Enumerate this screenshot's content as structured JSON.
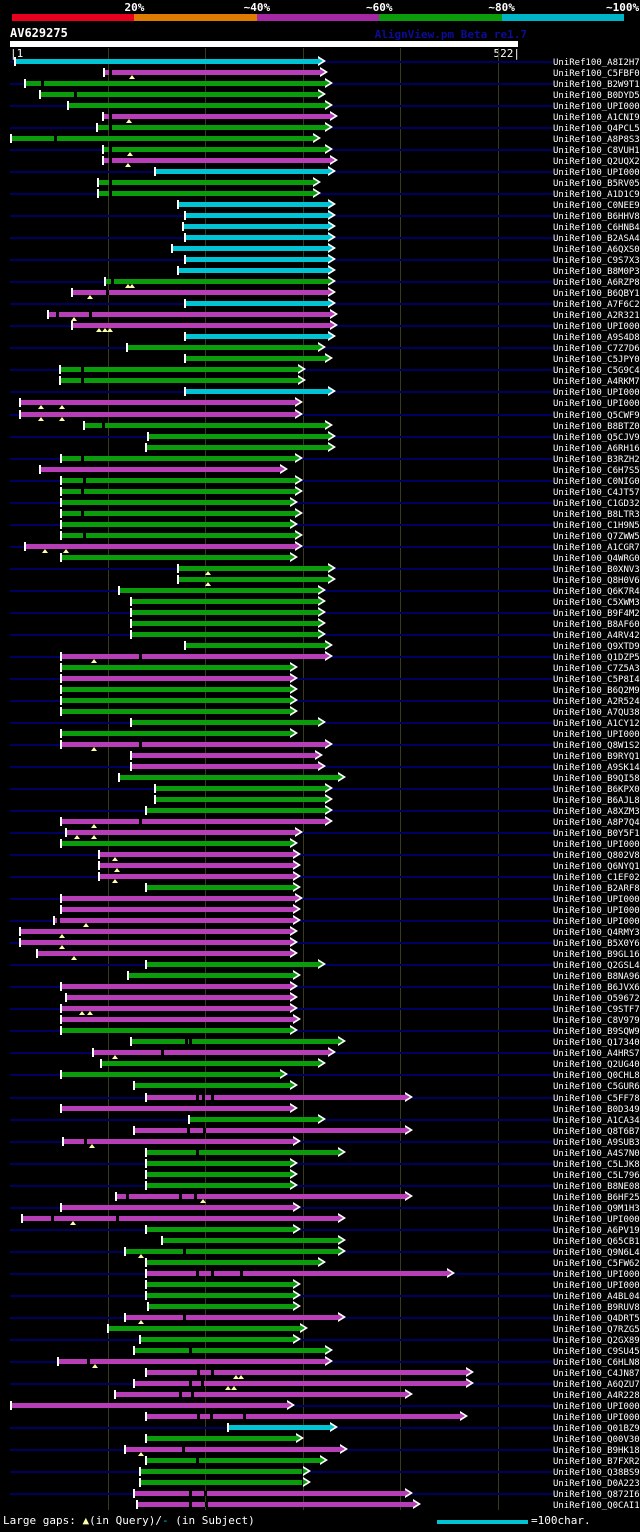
{
  "header": {
    "query_title": "AV629275",
    "watermark": "AlignView.pm Beta re1.7",
    "coord_start_label": "|1",
    "coord_end_label": "522|"
  },
  "legend": {
    "prefix": "Large gaps: ",
    "query_gap_symbol": "▲",
    "query_gap_text": "(in Query)/",
    "subject_gap_symbol": "-",
    "subject_gap_text": " (in Subject)",
    "ruler_label": "=100char."
  },
  "colors": {
    "green_hit": "#0b9c0b",
    "magenta_hit": "#b83eb8",
    "cyan_hit": "#00c4d4",
    "row_baseline": "#000060",
    "gridline": "#3a3a1c",
    "query_gap_marker": "#ffffaa",
    "scale_blocks": [
      "#e8001f",
      "#de7b00",
      "#a428a4",
      "#0b9c0b",
      "#00b4c8"
    ]
  },
  "chart_data": {
    "type": "bar",
    "orientation": "horizontal",
    "title": "AV629275",
    "xlabel": "query position",
    "axis": {
      "min": 1,
      "max": 522,
      "gridlines_at": [
        100,
        200,
        300,
        400,
        500
      ]
    },
    "identity_scale_labels": [
      "20%",
      "~40%",
      "~60%",
      "~80%",
      "~100%"
    ],
    "color_keys": {
      "g": "green_hit",
      "m": "magenta_hit",
      "c": "cyan_hit"
    },
    "row_format": [
      "subject_id",
      "color",
      "query_start",
      "query_end",
      "query_gap_positions",
      "subject_gap_positions"
    ],
    "rows": [
      [
        "UniRef100_A8I2H7",
        "c",
        5,
        316,
        [],
        []
      ],
      [
        "UniRef100_C5FBF0",
        "m",
        96,
        318,
        [
          125
        ],
        [
          103
        ]
      ],
      [
        "UniRef100_B2W9T1",
        "g",
        15,
        323,
        [],
        [
          33
        ]
      ],
      [
        "UniRef100_B0DYD5",
        "g",
        31,
        316,
        [],
        [
          67
        ]
      ],
      [
        "UniRef100_UPI000..",
        "g",
        59,
        323,
        [],
        []
      ],
      [
        "UniRef100_A1CNI9",
        "m",
        95,
        328,
        [
          122
        ],
        [
          103
        ]
      ],
      [
        "UniRef100_Q4PCL5",
        "g",
        89,
        323,
        [],
        [
          103
        ]
      ],
      [
        "UniRef100_A8P8S3",
        "g",
        1,
        311,
        [],
        [
          46
        ]
      ],
      [
        "UniRef100_C8VUH1",
        "g",
        95,
        323,
        [
          123
        ],
        [
          103
        ]
      ],
      [
        "UniRef100_Q2UQX2",
        "m",
        95,
        328,
        [
          121
        ],
        [
          103
        ]
      ],
      [
        "UniRef100_UPI000..",
        "c",
        149,
        326,
        [],
        []
      ],
      [
        "UniRef100_B5RV05",
        "g",
        90,
        311,
        [],
        [
          103
        ]
      ],
      [
        "UniRef100_A1D1C9",
        "g",
        90,
        311,
        [],
        [
          103
        ]
      ],
      [
        "UniRef100_C0NEE9",
        "c",
        172,
        326,
        [],
        []
      ],
      [
        "UniRef100_B6HHV8",
        "c",
        179,
        326,
        [],
        []
      ],
      [
        "UniRef100_C6HNB4",
        "c",
        177,
        326,
        [],
        []
      ],
      [
        "UniRef100_B2ASA4",
        "c",
        179,
        326,
        [],
        []
      ],
      [
        "UniRef100_A6QXS0",
        "c",
        166,
        326,
        [],
        []
      ],
      [
        "UniRef100_C9S7X3",
        "c",
        179,
        326,
        [],
        []
      ],
      [
        "UniRef100_B8M0P3",
        "c",
        172,
        326,
        [],
        []
      ],
      [
        "UniRef100_A6RZP8",
        "g",
        97,
        326,
        [
          121,
          125
        ],
        [
          105
        ]
      ],
      [
        "UniRef100_B6QBY1",
        "m",
        64,
        326,
        [
          82
        ],
        [
          99
        ]
      ],
      [
        "UniRef100_A7F6C2",
        "c",
        179,
        326,
        [],
        []
      ],
      [
        "UniRef100_A2R321",
        "m",
        39,
        328,
        [
          66
        ],
        [
          48,
          82
        ]
      ],
      [
        "UniRef100_UPI000..",
        "m",
        64,
        328,
        [
          91,
          97,
          103
        ],
        []
      ],
      [
        "UniRef100_A9S4D8",
        "c",
        179,
        326,
        [],
        []
      ],
      [
        "UniRef100_C7Z7D6",
        "g",
        120,
        316,
        [],
        []
      ],
      [
        "UniRef100_C5JPY0",
        "g",
        179,
        323,
        [],
        []
      ],
      [
        "UniRef100_C5G9C4",
        "g",
        51,
        295,
        [],
        [
          74
        ]
      ],
      [
        "UniRef100_A4RKM7",
        "g",
        51,
        295,
        [],
        [
          74
        ]
      ],
      [
        "UniRef100_UPI000..",
        "c",
        179,
        326,
        [],
        []
      ],
      [
        "UniRef100_UPI000..",
        "m",
        10,
        292,
        [
          32,
          53
        ],
        []
      ],
      [
        "UniRef100_Q5CWF9",
        "m",
        10,
        292,
        [
          32,
          53
        ],
        []
      ],
      [
        "UniRef100_B8BTZ0",
        "g",
        76,
        323,
        [],
        [
          95
        ]
      ],
      [
        "UniRef100_Q5CJV9",
        "g",
        142,
        326,
        [],
        []
      ],
      [
        "UniRef100_A6RH16",
        "g",
        139,
        326,
        [],
        []
      ],
      [
        "UniRef100_B3RZH2",
        "g",
        52,
        292,
        [],
        [
          74
        ]
      ],
      [
        "UniRef100_C6H7S5",
        "m",
        31,
        277,
        [],
        []
      ],
      [
        "UniRef100_C0NIG0",
        "g",
        52,
        292,
        [],
        [
          76
        ]
      ],
      [
        "UniRef100_C4JT57",
        "g",
        52,
        292,
        [],
        [
          74
        ]
      ],
      [
        "UniRef100_C1GD32",
        "g",
        52,
        287,
        [],
        []
      ],
      [
        "UniRef100_B8LTR3",
        "g",
        52,
        292,
        [],
        [
          74
        ]
      ],
      [
        "UniRef100_C1H9N5",
        "g",
        52,
        287,
        [],
        []
      ],
      [
        "UniRef100_Q7ZWW5",
        "g",
        52,
        292,
        [],
        [
          76
        ]
      ],
      [
        "UniRef100_A1CGR7",
        "m",
        15,
        292,
        [
          36,
          57
        ],
        []
      ],
      [
        "UniRef100_Q4WRG0",
        "g",
        52,
        287,
        [],
        []
      ],
      [
        "UniRef100_B0XNV3",
        "g",
        172,
        326,
        [
          203
        ],
        []
      ],
      [
        "UniRef100_Q8H0V6",
        "g",
        172,
        326,
        [
          203
        ],
        []
      ],
      [
        "UniRef100_Q6K7R4",
        "g",
        112,
        316,
        [],
        []
      ],
      [
        "UniRef100_C5XWM3",
        "g",
        124,
        316,
        [],
        []
      ],
      [
        "UniRef100_B9F4M2",
        "g",
        124,
        316,
        [],
        []
      ],
      [
        "UniRef100_B8AF60",
        "g",
        124,
        316,
        [],
        []
      ],
      [
        "UniRef100_A4RV42",
        "g",
        124,
        316,
        [],
        []
      ],
      [
        "UniRef100_Q9XTD9",
        "g",
        179,
        323,
        [],
        []
      ],
      [
        "UniRef100_Q1DZP5",
        "m",
        52,
        323,
        [
          86
        ],
        [
          133
        ]
      ],
      [
        "UniRef100_C7Z5A3",
        "g",
        52,
        287,
        [],
        []
      ],
      [
        "UniRef100_C5P8I4",
        "m",
        52,
        287,
        [],
        []
      ],
      [
        "UniRef100_B6Q2M9",
        "g",
        52,
        287,
        [],
        []
      ],
      [
        "UniRef100_A2R524",
        "g",
        52,
        287,
        [],
        []
      ],
      [
        "UniRef100_A7QU38",
        "g",
        52,
        287,
        [],
        []
      ],
      [
        "UniRef100_A1CY12",
        "g",
        124,
        316,
        [],
        []
      ],
      [
        "UniRef100_UPI000..",
        "g",
        52,
        287,
        [],
        []
      ],
      [
        "UniRef100_Q8W1S2",
        "m",
        52,
        323,
        [
          86
        ],
        [
          133
        ]
      ],
      [
        "UniRef100_B9RYQ1",
        "m",
        124,
        313,
        [],
        []
      ],
      [
        "UniRef100_A9SK14",
        "m",
        124,
        316,
        [],
        []
      ],
      [
        "UniRef100_B9QI58",
        "g",
        112,
        336,
        [],
        []
      ],
      [
        "UniRef100_B6KPX0",
        "g",
        149,
        323,
        [],
        []
      ],
      [
        "UniRef100_B6AJL8",
        "g",
        149,
        323,
        [],
        []
      ],
      [
        "UniRef100_A8XZM3",
        "g",
        139,
        323,
        [],
        []
      ],
      [
        "UniRef100_A8P7Q4",
        "m",
        52,
        323,
        [
          86
        ],
        [
          133
        ]
      ],
      [
        "UniRef100_B0Y5F1",
        "m",
        57,
        292,
        [
          69,
          86
        ],
        []
      ],
      [
        "UniRef100_UPI000..",
        "g",
        52,
        287,
        [],
        []
      ],
      [
        "UniRef100_Q802V8",
        "m",
        91,
        290,
        [
          108
        ],
        []
      ],
      [
        "UniRef100_Q6NYQ1",
        "m",
        91,
        290,
        [
          110
        ],
        []
      ],
      [
        "UniRef100_C1EF02",
        "m",
        91,
        290,
        [
          108
        ],
        []
      ],
      [
        "UniRef100_B2ARF8",
        "g",
        139,
        290,
        [],
        []
      ],
      [
        "UniRef100_UPI000..",
        "m",
        52,
        292,
        [],
        []
      ],
      [
        "UniRef100_UPI000..",
        "m",
        52,
        290,
        [],
        []
      ],
      [
        "UniRef100_UPI000..",
        "m",
        45,
        290,
        [
          78
        ],
        [
          49
        ]
      ],
      [
        "UniRef100_Q4RMY3",
        "m",
        10,
        287,
        [
          53
        ],
        []
      ],
      [
        "UniRef100_B5X0Y6",
        "m",
        10,
        287,
        [
          53
        ],
        []
      ],
      [
        "UniRef100_B9GL16",
        "m",
        28,
        287,
        [
          66
        ],
        []
      ],
      [
        "UniRef100_Q2GSL4",
        "g",
        139,
        316,
        [],
        []
      ],
      [
        "UniRef100_B8NA96",
        "g",
        121,
        290,
        [],
        []
      ],
      [
        "UniRef100_B6JVX6",
        "m",
        52,
        287,
        [],
        []
      ],
      [
        "UniRef100_O59672",
        "m",
        57,
        287,
        [],
        []
      ],
      [
        "UniRef100_C9STF7",
        "m",
        52,
        287,
        [
          74,
          82
        ],
        []
      ],
      [
        "UniRef100_C8V979",
        "m",
        52,
        290,
        [],
        []
      ],
      [
        "UniRef100_B9SQW9",
        "g",
        52,
        287,
        [],
        []
      ],
      [
        "UniRef100_Q17340",
        "g",
        124,
        336,
        [],
        [
          180,
          185
        ]
      ],
      [
        "UniRef100_A4HRS7",
        "m",
        85,
        326,
        [
          108
        ],
        [
          156
        ]
      ],
      [
        "UniRef100_Q2UG40",
        "g",
        93,
        316,
        [],
        []
      ],
      [
        "UniRef100_Q0CHL8",
        "g",
        52,
        277,
        [],
        []
      ],
      [
        "UniRef100_C5GUR6",
        "g",
        127,
        287,
        [],
        []
      ],
      [
        "UniRef100_C5FF78",
        "m",
        139,
        405,
        [],
        [
          192,
          198,
          207
        ]
      ],
      [
        "UniRef100_B0D349",
        "m",
        52,
        287,
        [],
        []
      ],
      [
        "UniRef100_A1CA34",
        "g",
        184,
        316,
        [],
        []
      ],
      [
        "UniRef100_Q8T6B7",
        "m",
        127,
        405,
        [],
        [
          183,
          199
        ]
      ],
      [
        "UniRef100_A9SUB3",
        "m",
        54,
        290,
        [
          84
        ],
        [
          77
        ]
      ],
      [
        "UniRef100_A4S7N0",
        "g",
        139,
        336,
        [],
        [
          192
        ]
      ],
      [
        "UniRef100_C5LJK8",
        "g",
        139,
        287,
        [],
        []
      ],
      [
        "UniRef100_C5L796",
        "g",
        139,
        287,
        [],
        []
      ],
      [
        "UniRef100_B8NE08",
        "g",
        139,
        287,
        [],
        []
      ],
      [
        "UniRef100_B6HF25",
        "m",
        109,
        405,
        [
          198
        ],
        [
          120,
          174,
          190
        ]
      ],
      [
        "UniRef100_Q9M1H3",
        "m",
        52,
        290,
        [],
        []
      ],
      [
        "UniRef100_UPI000..",
        "m",
        12,
        336,
        [
          65
        ],
        [
          43,
          110
        ]
      ],
      [
        "UniRef100_A6PV19",
        "g",
        139,
        290,
        [],
        []
      ],
      [
        "UniRef100_Q65CB1",
        "g",
        156,
        336,
        [],
        []
      ],
      [
        "UniRef100_Q9N6L4",
        "g",
        118,
        336,
        [
          134
        ],
        [
          178
        ]
      ],
      [
        "UniRef100_C5FW62",
        "g",
        139,
        316,
        [],
        []
      ],
      [
        "UniRef100_UPI000..",
        "m",
        139,
        448,
        [],
        [
          192,
          207,
          237
        ]
      ],
      [
        "UniRef100_UPI000..",
        "g",
        139,
        290,
        [],
        []
      ],
      [
        "UniRef100_A4BL04",
        "g",
        139,
        290,
        [],
        []
      ],
      [
        "UniRef100_B9RUV8",
        "g",
        142,
        290,
        [],
        []
      ],
      [
        "UniRef100_Q4DRT5",
        "m",
        118,
        336,
        [
          134
        ],
        [
          178
        ]
      ],
      [
        "UniRef100_Q7RZG5",
        "g",
        100,
        297,
        [],
        []
      ],
      [
        "UniRef100_Q2GX89",
        "g",
        133,
        290,
        [],
        []
      ],
      [
        "UniRef100_C9SU45",
        "g",
        127,
        323,
        [],
        [
          185
        ]
      ],
      [
        "UniRef100_C6HLN8",
        "m",
        49,
        323,
        [
          87
        ],
        [
          80
        ]
      ],
      [
        "UniRef100_C4JN87",
        "m",
        139,
        468,
        [
          232,
          237
        ],
        [
          193,
          207
        ]
      ],
      [
        "UniRef100_A6QZU7",
        "m",
        127,
        468,
        [
          224,
          230
        ],
        [
          185,
          197
        ]
      ],
      [
        "UniRef100_A4R228",
        "m",
        108,
        405,
        [],
        [
          174,
          187
        ]
      ],
      [
        "UniRef100_UPI000..",
        "m",
        1,
        284,
        [],
        []
      ],
      [
        "UniRef100_UPI000..",
        "m",
        139,
        462,
        [],
        [
          193,
          206,
          240
        ]
      ],
      [
        "UniRef100_Q01BZ9",
        "c",
        224,
        328,
        [],
        []
      ],
      [
        "UniRef100_Q00V30",
        "g",
        139,
        293,
        [],
        []
      ],
      [
        "UniRef100_B9HK18",
        "m",
        118,
        338,
        [
          134
        ],
        [
          177
        ]
      ],
      [
        "UniRef100_B7FXR2",
        "g",
        139,
        318,
        [],
        [
          192
        ]
      ],
      [
        "UniRef100_Q38BS9",
        "g",
        133,
        300,
        [],
        []
      ],
      [
        "UniRef100_D0A223",
        "g",
        133,
        300,
        [],
        []
      ],
      [
        "UniRef100_Q872I6",
        "m",
        127,
        405,
        [],
        [
          185,
          200
        ]
      ],
      [
        "UniRef100_Q0CAI1",
        "m",
        130,
        413,
        [],
        [
          185,
          201
        ]
      ]
    ]
  }
}
